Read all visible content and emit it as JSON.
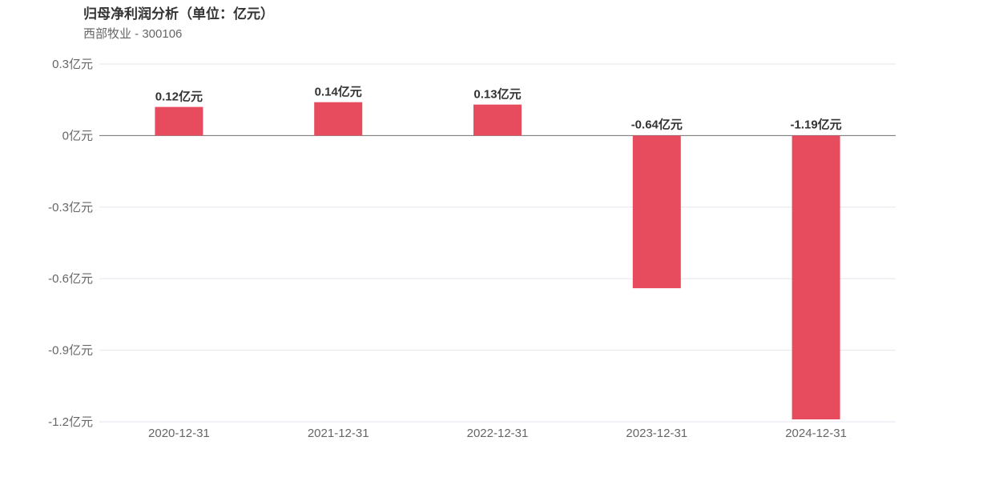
{
  "chart_data": {
    "type": "bar",
    "title": "归母净利润分析（单位：亿元）",
    "subtitle": "西部牧业 - 300106",
    "categories": [
      "2020-12-31",
      "2021-12-31",
      "2022-12-31",
      "2023-12-31",
      "2024-12-31"
    ],
    "values": [
      0.12,
      0.14,
      0.13,
      -0.64,
      -1.19
    ],
    "value_labels": [
      "0.12亿元",
      "0.14亿元",
      "0.13亿元",
      "-0.64亿元",
      "-1.19亿元"
    ],
    "y_ticks": [
      0.3,
      0,
      -0.3,
      -0.6,
      -0.9,
      -1.2
    ],
    "y_tick_labels": [
      "0.3亿元",
      "0亿元",
      "-0.3亿元",
      "-0.6亿元",
      "-0.9亿元",
      "-1.2亿元"
    ],
    "ylim": [
      -1.2,
      0.3
    ],
    "grid": true,
    "bar_color": "#e64c5e",
    "grid_color": "#e6e6ee",
    "zero_line_color": "#707070"
  }
}
